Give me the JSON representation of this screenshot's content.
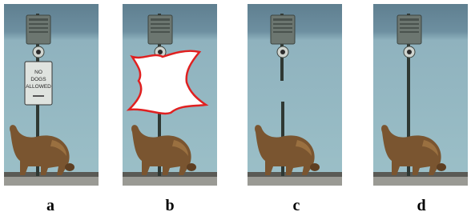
{
  "panels": [
    {
      "label": "a",
      "sign_lines": [
        "NO",
        "DOGS",
        "ALLOWED"
      ]
    },
    {
      "label": "b"
    },
    {
      "label": "c"
    },
    {
      "label": "d"
    }
  ]
}
